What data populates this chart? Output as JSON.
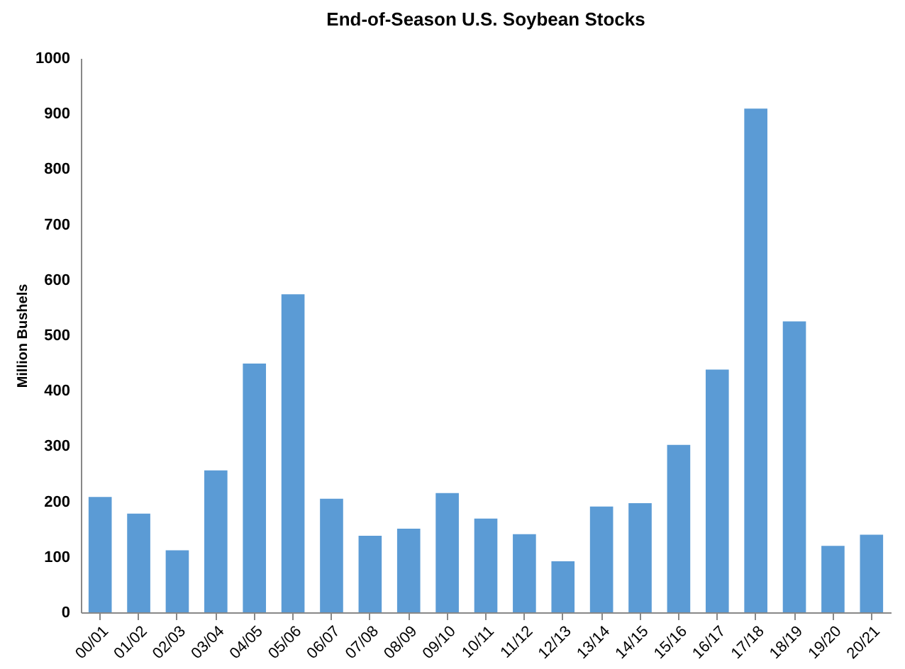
{
  "chart_data": {
    "type": "bar",
    "title": "End-of-Season U.S. Soybean Stocks",
    "ylabel": "Million Bushels",
    "categories": [
      "00/01",
      "01/02",
      "02/03",
      "03/04",
      "04/05",
      "05/06",
      "06/07",
      "07/08",
      "08/09",
      "09/10",
      "10/11",
      "11/12",
      "12/13",
      "13/14",
      "14/15",
      "15/16",
      "16/17",
      "17/18",
      "18/19",
      "19/20",
      "20/21"
    ],
    "values": [
      208,
      178,
      112,
      256,
      449,
      574,
      205,
      138,
      151,
      215,
      169,
      141,
      92,
      191,
      197,
      302,
      438,
      909,
      525,
      120,
      140
    ],
    "color": "#5b9bd5",
    "ylim": [
      0,
      1000
    ],
    "yticks": [
      0,
      100,
      200,
      300,
      400,
      500,
      600,
      700,
      800,
      900,
      1000
    ],
    "grid": false
  }
}
